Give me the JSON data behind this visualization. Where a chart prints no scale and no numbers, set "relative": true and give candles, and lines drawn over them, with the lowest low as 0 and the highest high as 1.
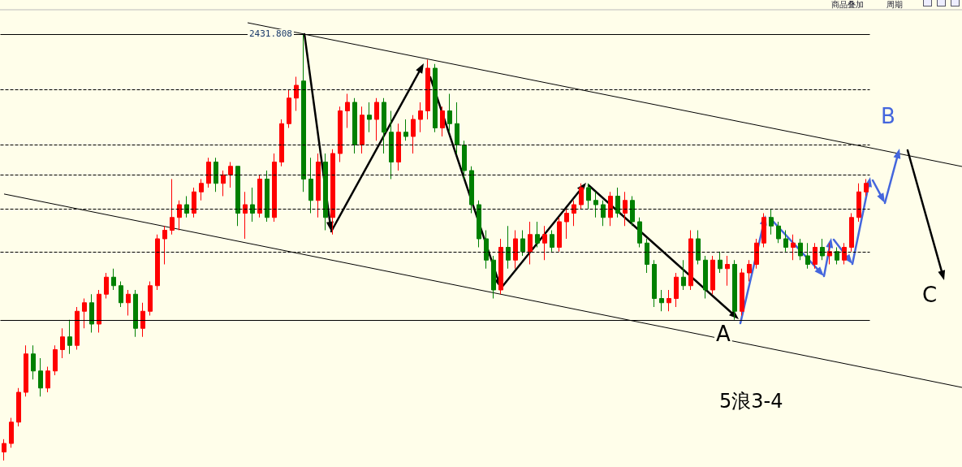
{
  "chart_data": {
    "type": "candlestick",
    "relative": true,
    "categories": [
      null,
      null,
      null,
      null,
      null,
      null,
      null,
      null,
      null,
      null,
      null,
      null,
      null,
      null,
      null,
      null,
      null,
      null,
      null,
      null,
      null,
      null,
      null,
      null,
      null,
      null,
      null,
      null,
      null,
      null,
      null,
      null,
      null,
      null,
      null,
      null,
      null,
      null,
      null,
      null,
      null,
      null,
      null,
      null,
      null,
      null,
      null,
      null,
      null,
      null,
      null,
      null,
      null,
      null,
      null,
      null,
      null,
      null,
      null,
      null,
      null,
      null,
      null,
      null,
      null,
      null,
      null,
      null,
      null,
      null,
      null,
      null,
      null,
      null,
      null,
      null,
      null,
      null,
      null,
      null,
      null,
      null,
      null,
      null,
      null,
      null,
      null,
      null,
      null,
      null,
      null,
      null,
      null,
      null,
      null,
      null,
      null,
      null,
      null,
      null,
      null,
      null,
      null,
      null,
      null,
      null,
      null,
      null,
      null,
      null,
      null,
      null,
      null,
      null,
      null,
      null,
      null,
      null,
      null
    ],
    "ohlc": [
      [
        0.02,
        0.05,
        0.0,
        0.04
      ],
      [
        0.04,
        0.1,
        0.03,
        0.09
      ],
      [
        0.09,
        0.17,
        0.08,
        0.16
      ],
      [
        0.16,
        0.27,
        0.15,
        0.25
      ],
      [
        0.25,
        0.27,
        0.19,
        0.21
      ],
      [
        0.21,
        0.24,
        0.15,
        0.17
      ],
      [
        0.17,
        0.22,
        0.16,
        0.21
      ],
      [
        0.21,
        0.27,
        0.2,
        0.26
      ],
      [
        0.26,
        0.31,
        0.24,
        0.29
      ],
      [
        0.29,
        0.33,
        0.25,
        0.27
      ],
      [
        0.27,
        0.36,
        0.26,
        0.35
      ],
      [
        0.35,
        0.38,
        0.31,
        0.37
      ],
      [
        0.37,
        0.39,
        0.3,
        0.32
      ],
      [
        0.32,
        0.4,
        0.3,
        0.39
      ],
      [
        0.39,
        0.44,
        0.38,
        0.43
      ],
      [
        0.43,
        0.45,
        0.4,
        0.41
      ],
      [
        0.41,
        0.42,
        0.36,
        0.37
      ],
      [
        0.37,
        0.4,
        0.34,
        0.39
      ],
      [
        0.39,
        0.4,
        0.29,
        0.31
      ],
      [
        0.31,
        0.37,
        0.29,
        0.35
      ],
      [
        0.35,
        0.42,
        0.34,
        0.41
      ],
      [
        0.41,
        0.53,
        0.4,
        0.52
      ],
      [
        0.52,
        0.55,
        0.46,
        0.54
      ],
      [
        0.54,
        0.66,
        0.53,
        0.57
      ],
      [
        0.57,
        0.61,
        0.54,
        0.6
      ],
      [
        0.6,
        0.62,
        0.57,
        0.58
      ],
      [
        0.58,
        0.64,
        0.57,
        0.63
      ],
      [
        0.63,
        0.66,
        0.61,
        0.65
      ],
      [
        0.65,
        0.71,
        0.64,
        0.7
      ],
      [
        0.7,
        0.71,
        0.63,
        0.65
      ],
      [
        0.65,
        0.68,
        0.62,
        0.67
      ],
      [
        0.67,
        0.7,
        0.64,
        0.69
      ],
      [
        0.69,
        0.69,
        0.55,
        0.58
      ],
      [
        0.58,
        0.63,
        0.52,
        0.6
      ],
      [
        0.6,
        0.64,
        0.56,
        0.58
      ],
      [
        0.58,
        0.67,
        0.57,
        0.66
      ],
      [
        0.66,
        0.68,
        0.56,
        0.57
      ],
      [
        0.57,
        0.72,
        0.56,
        0.7
      ],
      [
        0.7,
        0.8,
        0.69,
        0.79
      ],
      [
        0.79,
        0.87,
        0.78,
        0.85
      ],
      [
        0.85,
        0.9,
        0.82,
        0.88
      ],
      [
        0.89,
        1.0,
        0.63,
        0.66
      ],
      [
        0.66,
        0.71,
        0.58,
        0.61
      ],
      [
        0.61,
        0.72,
        0.57,
        0.7
      ],
      [
        0.7,
        0.72,
        0.54,
        0.57
      ],
      [
        0.57,
        0.73,
        0.53,
        0.72
      ],
      [
        0.72,
        0.83,
        0.7,
        0.82
      ],
      [
        0.82,
        0.86,
        0.78,
        0.84
      ],
      [
        0.84,
        0.85,
        0.72,
        0.74
      ],
      [
        0.74,
        0.83,
        0.72,
        0.81
      ],
      [
        0.81,
        0.84,
        0.77,
        0.8
      ],
      [
        0.8,
        0.85,
        0.75,
        0.84
      ],
      [
        0.84,
        0.85,
        0.72,
        0.77
      ],
      [
        0.77,
        0.82,
        0.66,
        0.7
      ],
      [
        0.7,
        0.79,
        0.68,
        0.77
      ],
      [
        0.77,
        0.8,
        0.75,
        0.76
      ],
      [
        0.76,
        0.81,
        0.72,
        0.8
      ],
      [
        0.8,
        0.84,
        0.77,
        0.82
      ],
      [
        0.82,
        0.94,
        0.8,
        0.92
      ],
      [
        0.92,
        0.93,
        0.77,
        0.78
      ],
      [
        0.78,
        0.83,
        0.76,
        0.82
      ],
      [
        0.82,
        0.86,
        0.77,
        0.79
      ],
      [
        0.79,
        0.84,
        0.72,
        0.74
      ],
      [
        0.74,
        0.75,
        0.66,
        0.68
      ],
      [
        0.68,
        0.69,
        0.58,
        0.6
      ],
      [
        0.6,
        0.61,
        0.5,
        0.52
      ],
      [
        0.52,
        0.54,
        0.45,
        0.47
      ],
      [
        0.47,
        0.48,
        0.38,
        0.4
      ],
      [
        0.4,
        0.52,
        0.39,
        0.5
      ],
      [
        0.5,
        0.55,
        0.45,
        0.47
      ],
      [
        0.47,
        0.54,
        0.45,
        0.52
      ],
      [
        0.52,
        0.54,
        0.48,
        0.49
      ],
      [
        0.49,
        0.56,
        0.46,
        0.53
      ],
      [
        0.53,
        0.56,
        0.5,
        0.51
      ],
      [
        0.51,
        0.55,
        0.47,
        0.53
      ],
      [
        0.53,
        0.54,
        0.49,
        0.5
      ],
      [
        0.5,
        0.57,
        0.49,
        0.56
      ],
      [
        0.56,
        0.59,
        0.52,
        0.58
      ],
      [
        0.58,
        0.61,
        0.55,
        0.6
      ],
      [
        0.6,
        0.65,
        0.59,
        0.64
      ],
      [
        0.64,
        0.65,
        0.59,
        0.61
      ],
      [
        0.61,
        0.63,
        0.57,
        0.6
      ],
      [
        0.6,
        0.61,
        0.55,
        0.57
      ],
      [
        0.57,
        0.63,
        0.55,
        0.62
      ],
      [
        0.62,
        0.64,
        0.57,
        0.58
      ],
      [
        0.58,
        0.63,
        0.55,
        0.61
      ],
      [
        0.61,
        0.62,
        0.55,
        0.56
      ],
      [
        0.56,
        0.57,
        0.5,
        0.51
      ],
      [
        0.51,
        0.52,
        0.44,
        0.46
      ],
      [
        0.46,
        0.47,
        0.36,
        0.38
      ],
      [
        0.38,
        0.4,
        0.35,
        0.37
      ],
      [
        0.37,
        0.4,
        0.35,
        0.38
      ],
      [
        0.38,
        0.44,
        0.36,
        0.43
      ],
      [
        0.43,
        0.47,
        0.4,
        0.41
      ],
      [
        0.41,
        0.54,
        0.4,
        0.52
      ],
      [
        0.52,
        0.54,
        0.46,
        0.47
      ],
      [
        0.47,
        0.48,
        0.38,
        0.4
      ],
      [
        0.4,
        0.48,
        0.39,
        0.47
      ],
      [
        0.47,
        0.49,
        0.44,
        0.45
      ],
      [
        0.45,
        0.48,
        0.41,
        0.46
      ],
      [
        0.46,
        0.47,
        0.33,
        0.35
      ],
      [
        0.35,
        0.45,
        0.34,
        0.44
      ],
      [
        0.44,
        0.47,
        0.42,
        0.46
      ],
      [
        0.46,
        0.52,
        0.45,
        0.51
      ],
      [
        0.51,
        0.58,
        0.5,
        0.57
      ],
      [
        0.57,
        0.59,
        0.53,
        0.55
      ],
      [
        0.55,
        0.56,
        0.51,
        0.52
      ],
      [
        0.52,
        0.54,
        0.49,
        0.5
      ],
      [
        0.5,
        0.53,
        0.47,
        0.51
      ],
      [
        0.51,
        0.52,
        0.47,
        0.48
      ],
      [
        0.48,
        0.51,
        0.45,
        0.46
      ],
      [
        0.46,
        0.51,
        0.45,
        0.5
      ],
      [
        0.5,
        0.52,
        0.47,
        0.48
      ],
      [
        0.48,
        0.51,
        0.46,
        0.49
      ],
      [
        0.49,
        0.5,
        0.46,
        0.47
      ],
      [
        0.47,
        0.51,
        0.46,
        0.5
      ],
      [
        0.5,
        0.58,
        0.49,
        0.57
      ],
      [
        0.57,
        0.65,
        0.56,
        0.63
      ],
      [
        0.63,
        0.66,
        0.62,
        0.65
      ]
    ],
    "ref_lines": [
      {
        "axis": "y",
        "value": 1.0,
        "line_style": "solid"
      },
      {
        "axis": "y",
        "value": 0.872,
        "line_style": "dashed"
      },
      {
        "axis": "y",
        "value": 0.74,
        "line_style": "dashed"
      },
      {
        "axis": "y",
        "value": 0.67,
        "line_style": "dashed"
      },
      {
        "axis": "y",
        "value": 0.587,
        "line_style": "dashed"
      },
      {
        "axis": "y",
        "value": 0.49,
        "line_style": "dashed"
      },
      {
        "axis": "y",
        "value": 0.33,
        "line_style": "solid"
      }
    ],
    "series": [
      {
        "type": "line",
        "color": "#000000",
        "values": [
          0.625,
          null,
          null,
          null,
          null,
          null,
          null,
          null,
          null,
          null,
          null,
          null,
          null,
          null,
          null,
          null,
          null,
          null,
          null,
          null,
          null,
          null,
          null,
          null,
          null,
          null,
          null,
          null,
          null,
          null,
          null,
          null,
          null,
          null,
          null,
          null,
          null,
          null,
          null,
          null,
          null,
          null,
          null,
          null,
          null,
          null,
          null,
          null,
          null,
          null,
          null,
          null,
          null,
          null,
          null,
          null,
          null,
          null,
          null,
          null,
          null,
          null,
          null,
          null,
          null,
          null,
          null,
          null,
          null,
          null,
          null,
          null,
          null,
          null,
          null,
          null,
          null,
          null,
          null,
          null,
          null,
          null,
          null,
          null,
          null,
          null,
          null,
          null,
          null,
          null,
          null,
          null,
          null,
          null,
          null,
          null,
          null,
          null,
          null,
          null,
          null,
          null,
          null,
          null,
          null,
          null,
          null,
          null,
          null,
          null,
          null,
          null,
          null,
          null,
          null,
          null,
          null,
          null,
          0.217
        ]
      },
      {
        "type": "line",
        "color": "#000000",
        "values": [
          null,
          null,
          null,
          null,
          null,
          null,
          null,
          null,
          null,
          null,
          null,
          null,
          null,
          null,
          null,
          null,
          null,
          null,
          null,
          null,
          null,
          null,
          null,
          null,
          null,
          null,
          null,
          null,
          null,
          null,
          null,
          null,
          null,
          null,
          null,
          null,
          null,
          null,
          null,
          null,
          null,
          1.0,
          null,
          null,
          null,
          null,
          null,
          null,
          null,
          null,
          null,
          null,
          null,
          null,
          null,
          null,
          null,
          null,
          null,
          null,
          null,
          null,
          null,
          null,
          null,
          null,
          null,
          null,
          null,
          null,
          null,
          null,
          null,
          null,
          null,
          null,
          null,
          null,
          null,
          null,
          null,
          null,
          null,
          null,
          null,
          null,
          null,
          null,
          null,
          null,
          null,
          null,
          null,
          null,
          null,
          null,
          null,
          null,
          null,
          null,
          null,
          null,
          null,
          null,
          null,
          null,
          null,
          null,
          null,
          null,
          null,
          null,
          null,
          null,
          null,
          null,
          null,
          null,
          0.735
        ]
      }
    ],
    "annotations": [
      "2431.808",
      "A",
      "B",
      "C",
      "5浪3-4",
      "商品叠加",
      "周期"
    ]
  }
}
